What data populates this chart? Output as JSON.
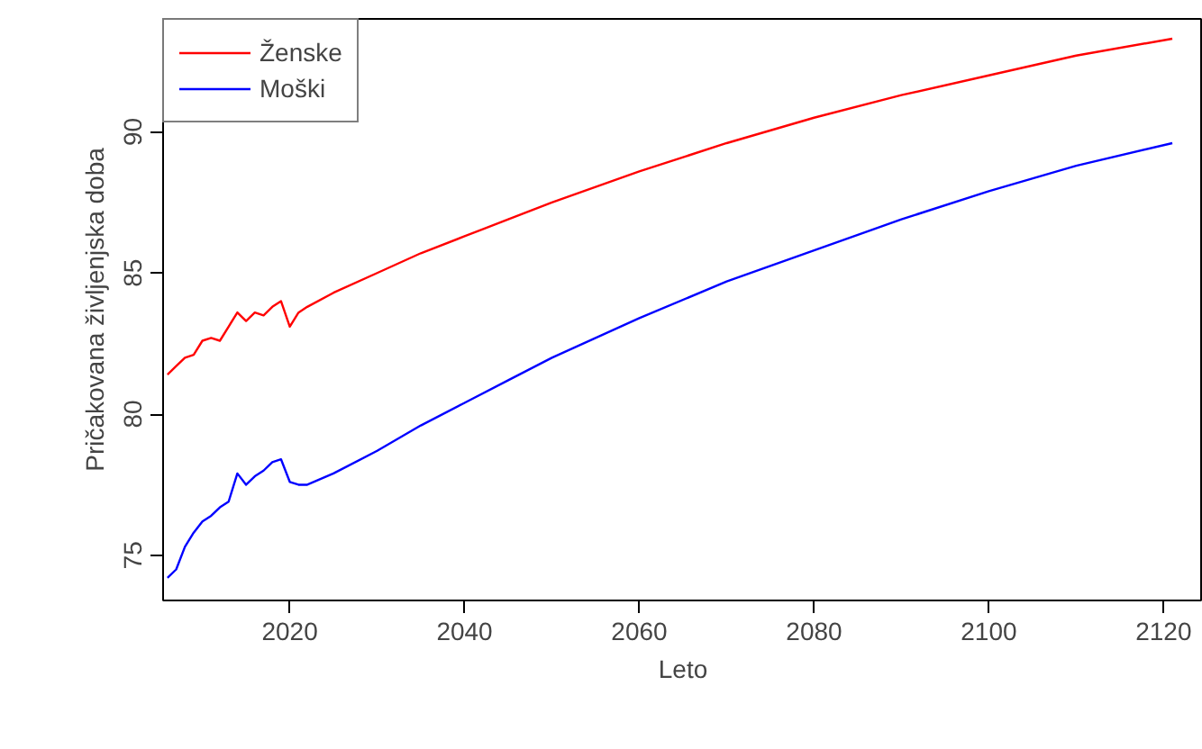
{
  "chart_data": {
    "type": "line",
    "xlabel": "Leto",
    "ylabel": "Pričakovana življenjska doba",
    "x": [
      2006,
      2007,
      2008,
      2009,
      2010,
      2011,
      2012,
      2013,
      2014,
      2015,
      2016,
      2017,
      2018,
      2019,
      2020,
      2021,
      2022,
      2025,
      2030,
      2035,
      2040,
      2045,
      2050,
      2060,
      2070,
      2080,
      2090,
      2100,
      2110,
      2121
    ],
    "series": [
      {
        "name": "Ženske",
        "color": "#ff0000",
        "values": [
          81.4,
          81.7,
          82.0,
          82.1,
          82.6,
          82.7,
          82.6,
          83.1,
          83.6,
          83.3,
          83.6,
          83.5,
          83.8,
          84.0,
          83.1,
          83.6,
          83.8,
          84.3,
          85.0,
          85.7,
          86.3,
          86.9,
          87.5,
          88.6,
          89.6,
          90.5,
          91.3,
          92.0,
          92.7,
          93.3
        ]
      },
      {
        "name": "Moški",
        "color": "#0000ff",
        "values": [
          74.2,
          74.5,
          75.3,
          75.8,
          76.2,
          76.4,
          76.7,
          76.9,
          77.9,
          77.5,
          77.8,
          78.0,
          78.3,
          78.4,
          77.6,
          77.5,
          77.5,
          77.9,
          78.7,
          79.6,
          80.4,
          81.2,
          82.0,
          83.4,
          84.7,
          85.8,
          86.9,
          87.9,
          88.8,
          89.6
        ]
      }
    ],
    "xlim": [
      2005.5,
      2124.5
    ],
    "ylim": [
      73.4,
      94.0
    ],
    "xticks": [
      2020,
      2040,
      2060,
      2080,
      2100,
      2120
    ],
    "yticks": [
      75,
      80,
      85,
      90
    ],
    "grid": false,
    "legend": "top left",
    "line_style": "solid",
    "marker": "none"
  }
}
